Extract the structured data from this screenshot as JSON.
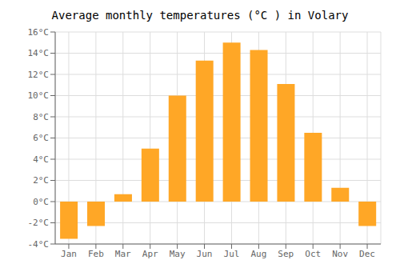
{
  "chart_data": {
    "type": "bar",
    "title": "Average monthly temperatures (°C ) in Volary",
    "categories": [
      "Jan",
      "Feb",
      "Mar",
      "Apr",
      "May",
      "Jun",
      "Jul",
      "Aug",
      "Sep",
      "Oct",
      "Nov",
      "Dec"
    ],
    "values": [
      -3.5,
      -2.3,
      0.7,
      5.0,
      10.0,
      13.3,
      15.0,
      14.3,
      11.1,
      6.5,
      1.3,
      -2.3
    ],
    "color": "#FFA726",
    "ylim": [
      -4,
      16
    ],
    "yticks": [
      {
        "value": -4,
        "label": "-4°C"
      },
      {
        "value": -2,
        "label": "-2°C"
      },
      {
        "value": 0,
        "label": "0°C"
      },
      {
        "value": 2,
        "label": "2°C"
      },
      {
        "value": 4,
        "label": "4°C"
      },
      {
        "value": 6,
        "label": "6°C"
      },
      {
        "value": 8,
        "label": "8°C"
      },
      {
        "value": 10,
        "label": "10°C"
      },
      {
        "value": 12,
        "label": "12°C"
      },
      {
        "value": 14,
        "label": "14°C"
      },
      {
        "value": 16,
        "label": "16°C"
      }
    ],
    "grid": true
  }
}
